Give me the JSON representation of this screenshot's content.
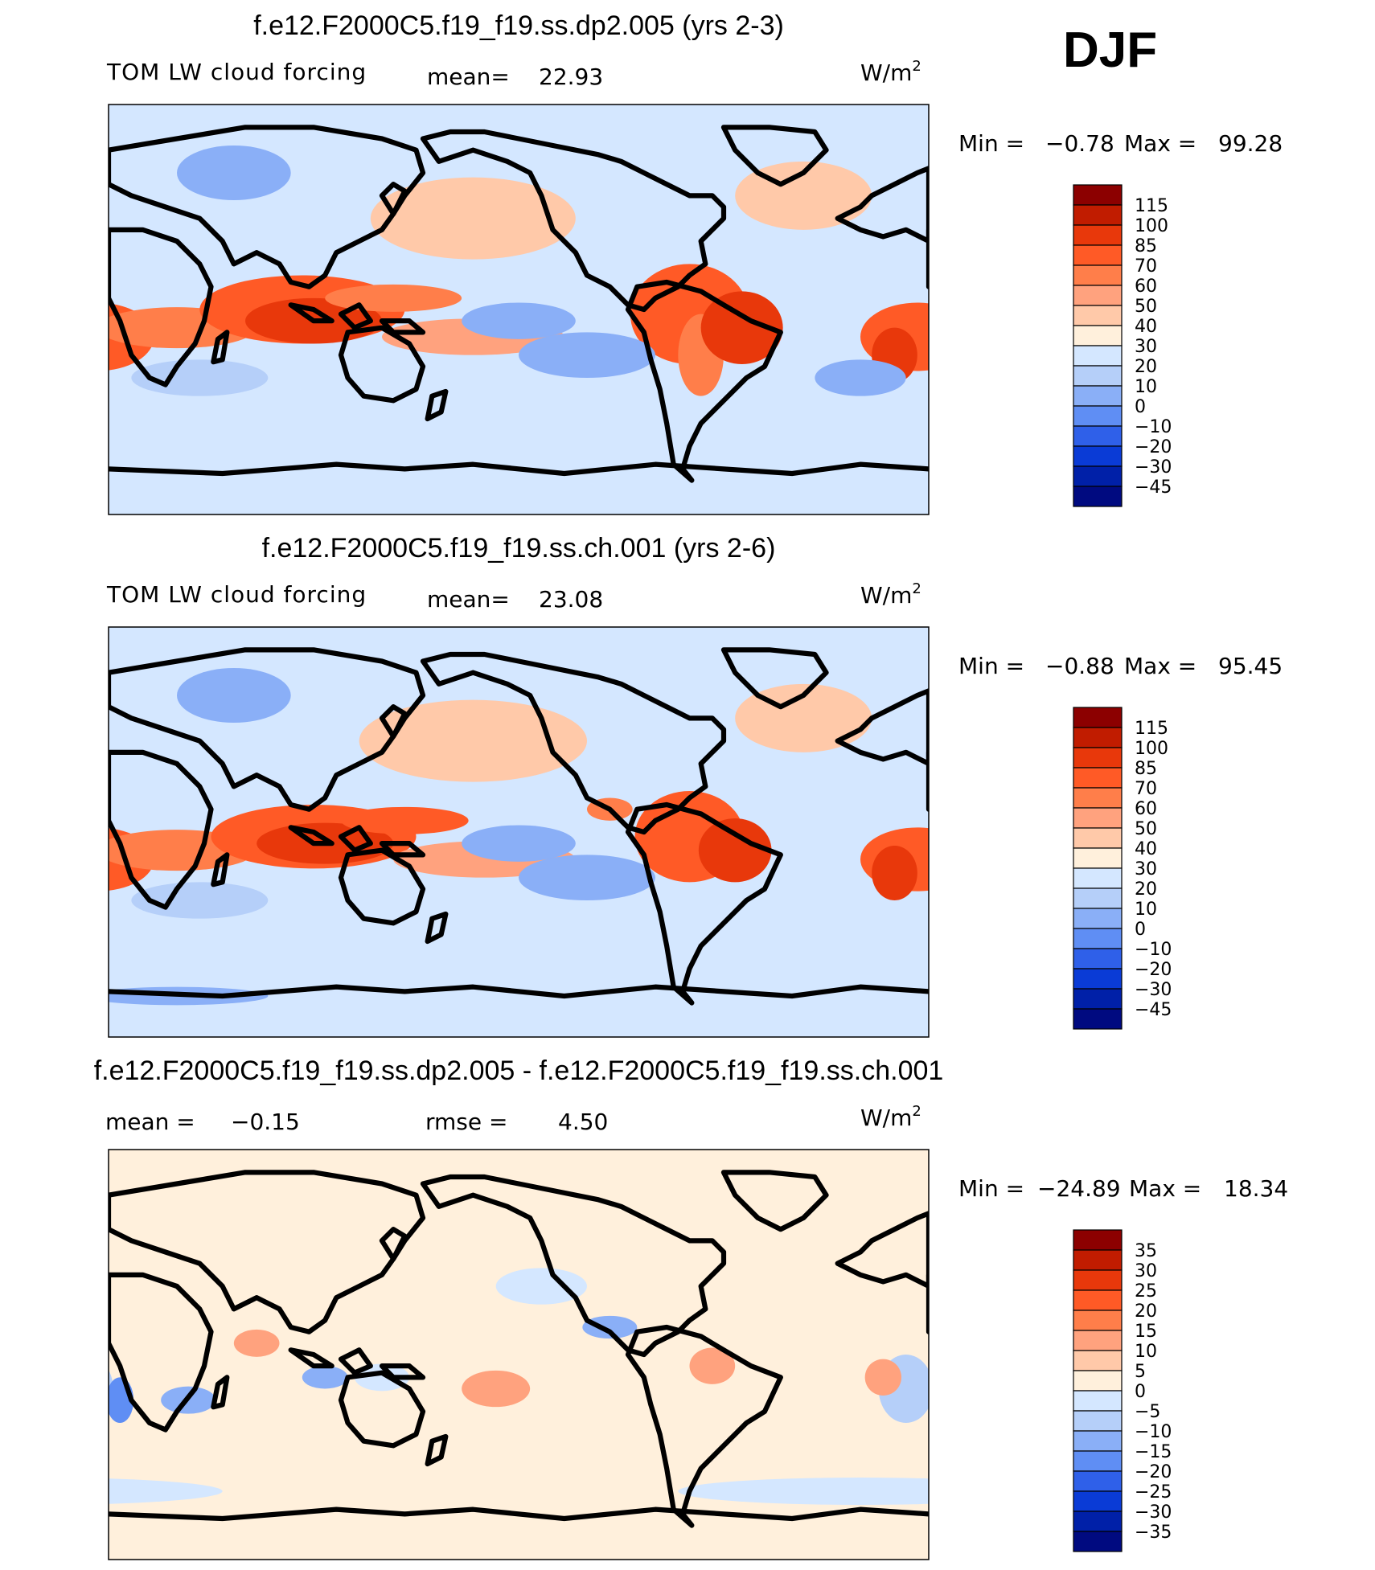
{
  "season": "DJF",
  "chart_data": [
    {
      "type": "heatmap",
      "title": "f.e12.F2000C5.f19_f19.ss.dp2.005 (yrs 2-3)",
      "variable": "TOM LW cloud forcing",
      "stat_left_label": "mean=",
      "stat_left_value": "22.93",
      "units_base": "W/m",
      "units_exp": "2",
      "min_label": "Min =",
      "min_value": "−0.78",
      "max_label": "Max =",
      "max_value": "99.28",
      "colorbar_levels": [
        "115",
        "100",
        "85",
        "70",
        "60",
        "50",
        "40",
        "30",
        "20",
        "10",
        "0",
        "−10",
        "−20",
        "−30",
        "−45"
      ],
      "colorbar_colors": [
        "#8c0000",
        "#c11c00",
        "#e8380b",
        "#ff5a26",
        "#ff7e4a",
        "#ffa27e",
        "#ffc9a9",
        "#fff0dc",
        "#d4e7ff",
        "#b5cff9",
        "#8aaff7",
        "#5f8ef4",
        "#2f60e9",
        "#0a3bd6",
        "#0020a8",
        "#000a80"
      ],
      "patches": [
        {
          "type": "base",
          "value": 20
        },
        {
          "lon": -75,
          "lat": -2,
          "rx": 26,
          "ry": 22,
          "value": 70
        },
        {
          "lon": -70,
          "lat": -20,
          "rx": 10,
          "ry": 18,
          "value": 60
        },
        {
          "lon": -52,
          "lat": -8,
          "rx": 18,
          "ry": 16,
          "value": 85
        },
        {
          "lon": 25,
          "lat": -12,
          "rx": 25,
          "ry": 15,
          "value": 70
        },
        {
          "lon": 15,
          "lat": -20,
          "rx": 10,
          "ry": 12,
          "value": 85
        },
        {
          "lon": 60,
          "lat": -8,
          "rx": 35,
          "ry": 9,
          "value": 60
        },
        {
          "lon": 115,
          "lat": 0,
          "rx": 45,
          "ry": 15,
          "value": 70
        },
        {
          "lon": 120,
          "lat": -5,
          "rx": 30,
          "ry": 10,
          "value": 85
        },
        {
          "lon": 155,
          "lat": 5,
          "rx": 30,
          "ry": 6,
          "value": 60
        },
        {
          "lon": -170,
          "lat": -12,
          "rx": 40,
          "ry": 8,
          "value": 50
        },
        {
          "lon": -170,
          "lat": 40,
          "rx": 45,
          "ry": 18,
          "value": 40
        },
        {
          "lon": -25,
          "lat": 50,
          "rx": 30,
          "ry": 15,
          "value": 40
        },
        {
          "lon": -150,
          "lat": -5,
          "rx": 25,
          "ry": 8,
          "value": 0
        },
        {
          "lon": -120,
          "lat": -20,
          "rx": 30,
          "ry": 10,
          "value": 0
        },
        {
          "lon": 85,
          "lat": 60,
          "rx": 25,
          "ry": 12,
          "value": 0
        },
        {
          "lon": 70,
          "lat": -30,
          "rx": 30,
          "ry": 8,
          "value": 10
        },
        {
          "lon": 0,
          "lat": -30,
          "rx": 20,
          "ry": 8,
          "value": 0
        }
      ]
    },
    {
      "type": "heatmap",
      "title": "f.e12.F2000C5.f19_f19.ss.ch.001 (yrs 2-6)",
      "variable": "TOM LW cloud forcing",
      "stat_left_label": "mean=",
      "stat_left_value": "23.08",
      "units_base": "W/m",
      "units_exp": "2",
      "min_label": "Min =",
      "min_value": "−0.88",
      "max_label": "Max =",
      "max_value": "95.45",
      "colorbar_levels": [
        "115",
        "100",
        "85",
        "70",
        "60",
        "50",
        "40",
        "30",
        "20",
        "10",
        "0",
        "−10",
        "−20",
        "−30",
        "−45"
      ],
      "colorbar_colors": [
        "#8c0000",
        "#c11c00",
        "#e8380b",
        "#ff5a26",
        "#ff7e4a",
        "#ffa27e",
        "#ffc9a9",
        "#fff0dc",
        "#d4e7ff",
        "#b5cff9",
        "#8aaff7",
        "#5f8ef4",
        "#2f60e9",
        "#0a3bd6",
        "#0020a8",
        "#000a80"
      ],
      "patches": [
        {
          "type": "base",
          "value": 20
        },
        {
          "lon": -75,
          "lat": -2,
          "rx": 24,
          "ry": 20,
          "value": 70
        },
        {
          "lon": -55,
          "lat": -8,
          "rx": 16,
          "ry": 14,
          "value": 85
        },
        {
          "lon": 25,
          "lat": -12,
          "rx": 25,
          "ry": 14,
          "value": 70
        },
        {
          "lon": 15,
          "lat": -18,
          "rx": 10,
          "ry": 12,
          "value": 85
        },
        {
          "lon": 60,
          "lat": -8,
          "rx": 35,
          "ry": 9,
          "value": 60
        },
        {
          "lon": 120,
          "lat": -2,
          "rx": 45,
          "ry": 14,
          "value": 70
        },
        {
          "lon": 125,
          "lat": -5,
          "rx": 30,
          "ry": 9,
          "value": 85
        },
        {
          "lon": 160,
          "lat": 5,
          "rx": 28,
          "ry": 6,
          "value": 70
        },
        {
          "lon": -165,
          "lat": -12,
          "rx": 40,
          "ry": 8,
          "value": 50
        },
        {
          "lon": -170,
          "lat": 40,
          "rx": 50,
          "ry": 18,
          "value": 40
        },
        {
          "lon": -25,
          "lat": 50,
          "rx": 30,
          "ry": 15,
          "value": 40
        },
        {
          "lon": -110,
          "lat": 10,
          "rx": 10,
          "ry": 5,
          "value": 60
        },
        {
          "lon": -150,
          "lat": -5,
          "rx": 25,
          "ry": 8,
          "value": 0
        },
        {
          "lon": -120,
          "lat": -20,
          "rx": 30,
          "ry": 10,
          "value": 0
        },
        {
          "lon": 85,
          "lat": 60,
          "rx": 25,
          "ry": 12,
          "value": 0
        },
        {
          "lon": 70,
          "lat": -30,
          "rx": 30,
          "ry": 8,
          "value": 10
        },
        {
          "lon": 60,
          "lat": -72,
          "rx": 40,
          "ry": 4,
          "value": 0
        }
      ]
    },
    {
      "type": "heatmap",
      "title": "f.e12.F2000C5.f19_f19.ss.dp2.005 - f.e12.F2000C5.f19_f19.ss.ch.001",
      "variable": "",
      "stat_left_label": "mean =",
      "stat_left_value": "−0.15",
      "stat_right_label": "rmse =",
      "stat_right_value": "4.50",
      "units_base": "W/m",
      "units_exp": "2",
      "min_label": "Min =",
      "min_value": "−24.89",
      "max_label": "Max =",
      "max_value": "18.34",
      "colorbar_levels": [
        "35",
        "30",
        "25",
        "20",
        "15",
        "10",
        "5",
        "0",
        "−5",
        "−10",
        "−15",
        "−20",
        "−25",
        "−30",
        "−35"
      ],
      "colorbar_colors": [
        "#8c0000",
        "#c11c00",
        "#e8380b",
        "#ff5a26",
        "#ff7e4a",
        "#ffa27e",
        "#ffc9a9",
        "#fff0dc",
        "#d4e7ff",
        "#b5cff9",
        "#8aaff7",
        "#5f8ef4",
        "#2f60e9",
        "#0a3bd6",
        "#0020a8",
        "#000a80"
      ],
      "patches": [
        {
          "type": "base",
          "value": 2
        },
        {
          "lon": 20,
          "lat": -15,
          "rx": 12,
          "ry": 15,
          "value": -7
        },
        {
          "lon": 35,
          "lat": -20,
          "rx": 6,
          "ry": 10,
          "value": -18
        },
        {
          "lon": 65,
          "lat": -20,
          "rx": 12,
          "ry": 6,
          "value": -15
        },
        {
          "lon": 95,
          "lat": 5,
          "rx": 10,
          "ry": 6,
          "value": 12
        },
        {
          "lon": 125,
          "lat": -10,
          "rx": 10,
          "ry": 5,
          "value": -15
        },
        {
          "lon": -110,
          "lat": 12,
          "rx": 12,
          "ry": 5,
          "value": -12
        },
        {
          "lon": -65,
          "lat": -5,
          "rx": 10,
          "ry": 8,
          "value": 10
        },
        {
          "lon": -160,
          "lat": -15,
          "rx": 15,
          "ry": 8,
          "value": 10
        },
        {
          "lon": 10,
          "lat": -10,
          "rx": 8,
          "ry": 8,
          "value": 10
        },
        {
          "lon": 150,
          "lat": -10,
          "rx": 12,
          "ry": 6,
          "value": -5
        },
        {
          "lon": 0,
          "lat": -60,
          "rx": 80,
          "ry": 6,
          "value": -2
        },
        {
          "lon": -140,
          "lat": 30,
          "rx": 20,
          "ry": 8,
          "value": -2
        }
      ]
    }
  ]
}
